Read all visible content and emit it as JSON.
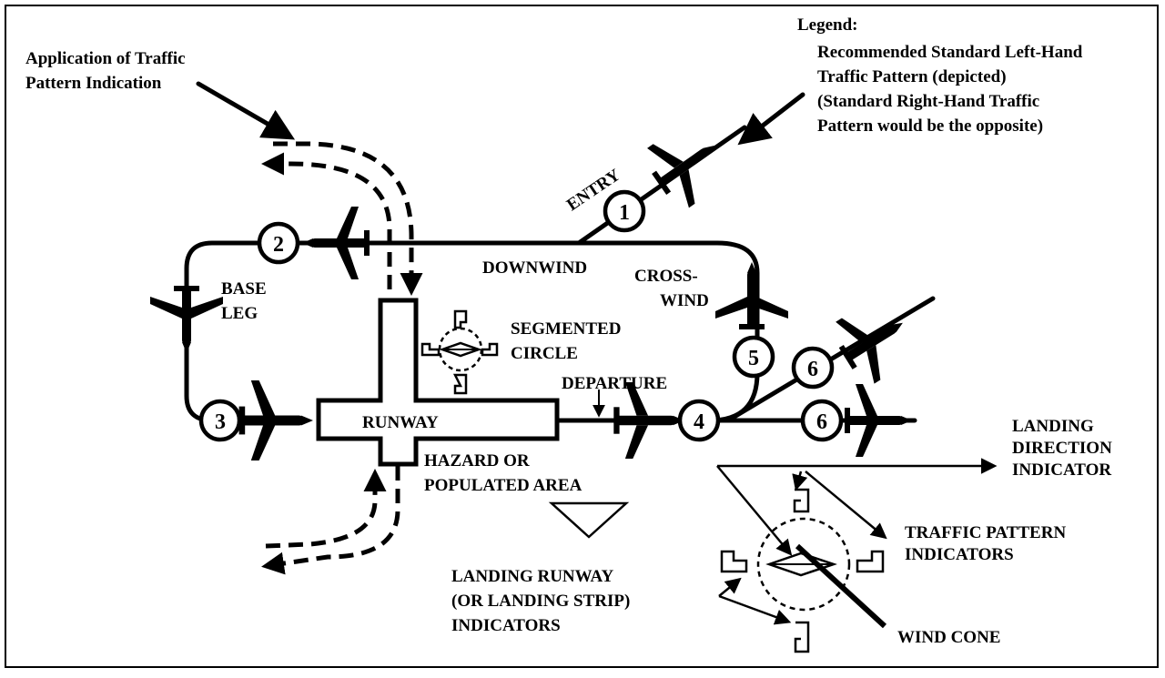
{
  "legend": {
    "title": "Legend:",
    "lines": [
      "Recommended Standard Left-Hand",
      "Traffic Pattern (depicted)",
      "(Standard Right-Hand Traffic",
      "Pattern would be the opposite)"
    ]
  },
  "application": {
    "lines": [
      "Application of Traffic",
      "Pattern Indication"
    ]
  },
  "labels": {
    "entry": "ENTRY",
    "downwind": "DOWNWIND",
    "crosswind": [
      "CROSS-",
      "WIND"
    ],
    "base_leg": [
      "BASE",
      "LEG"
    ],
    "segmented_circle": [
      "SEGMENTED",
      "CIRCLE"
    ],
    "departure": "DEPARTURE",
    "runway": "RUNWAY",
    "hazard": [
      "HAZARD OR",
      "POPULATED AREA"
    ],
    "landing_runway": [
      "LANDING RUNWAY",
      "(OR LANDING STRIP)",
      "INDICATORS"
    ],
    "landing_direction": [
      "LANDING",
      "DIRECTION",
      "INDICATOR"
    ],
    "traffic_pattern_indicators": [
      "TRAFFIC PATTERN",
      "INDICATORS"
    ],
    "wind_cone": "WIND CONE"
  },
  "legs": [
    "1",
    "2",
    "3",
    "4",
    "5",
    "6",
    "6"
  ]
}
